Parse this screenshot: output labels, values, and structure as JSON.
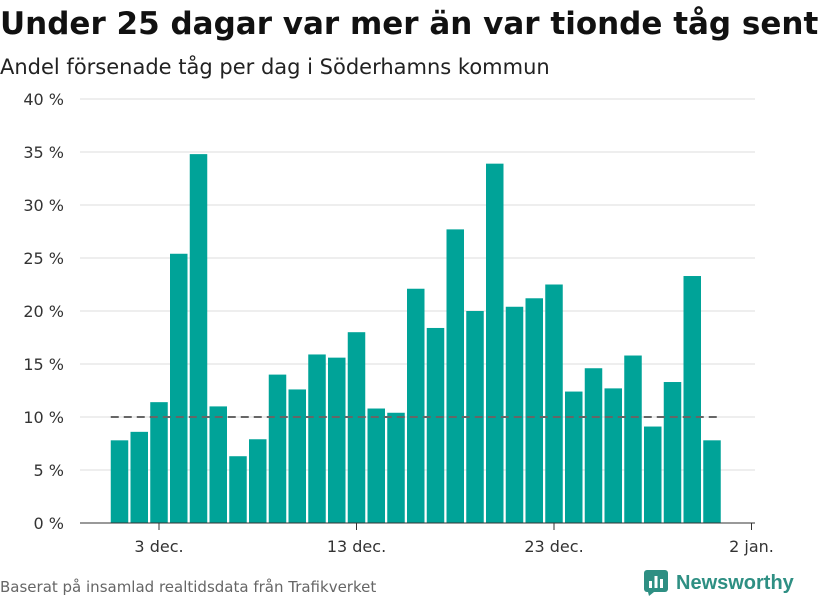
{
  "header": {
    "title": "Under 25 dagar var mer än var tionde tåg sent",
    "subtitle": "Andel försenade tåg per dag i Söderhamns kommun"
  },
  "footer": {
    "source": "Baserat på insamlad realtidsdata från Trafikverket",
    "brand": "Newsworthy"
  },
  "icons": {
    "brand_logo": "bar-chart-logo-icon"
  },
  "colors": {
    "bar": "#00a398",
    "reference_line": "#666666",
    "grid": "#dddddd",
    "brand": "#2e8f83"
  },
  "chart_data": {
    "type": "bar",
    "title": "Under 25 dagar var mer än var tionde tåg sent",
    "subtitle": "Andel försenade tåg per dag i Söderhamns kommun",
    "xlabel": "",
    "ylabel": "",
    "x_start_date": "2022-12-01",
    "days": [
      1,
      2,
      3,
      4,
      5,
      6,
      7,
      8,
      9,
      10,
      11,
      12,
      13,
      14,
      15,
      16,
      17,
      18,
      19,
      20,
      21,
      22,
      23,
      24,
      25,
      26,
      27,
      28,
      29,
      30,
      31
    ],
    "values": [
      7.8,
      8.6,
      11.4,
      25.4,
      34.8,
      11.0,
      6.3,
      7.9,
      14.0,
      12.6,
      15.9,
      15.6,
      18.0,
      10.8,
      10.4,
      22.1,
      18.4,
      27.7,
      20.0,
      33.9,
      20.4,
      21.2,
      22.5,
      12.4,
      14.6,
      12.7,
      15.8,
      9.1,
      13.3,
      23.3,
      7.8
    ],
    "reference_line": {
      "value": 10,
      "style": "dashed"
    },
    "ylim": [
      0,
      40
    ],
    "y_ticks": [
      {
        "value": 0,
        "label": "0 %"
      },
      {
        "value": 5,
        "label": "5 %"
      },
      {
        "value": 10,
        "label": "10 %"
      },
      {
        "value": 15,
        "label": "15 %"
      },
      {
        "value": 20,
        "label": "20 %"
      },
      {
        "value": 25,
        "label": "25 %"
      },
      {
        "value": 30,
        "label": "30 %"
      },
      {
        "value": 35,
        "label": "35 %"
      },
      {
        "value": 40,
        "label": "40 %"
      }
    ],
    "x_ticks": [
      {
        "day": 3,
        "label": "3 dec."
      },
      {
        "day": 13,
        "label": "13 dec."
      },
      {
        "day": 23,
        "label": "23 dec."
      },
      {
        "day": 33,
        "label": "2 jan."
      }
    ],
    "grid": true,
    "legend": "none"
  }
}
